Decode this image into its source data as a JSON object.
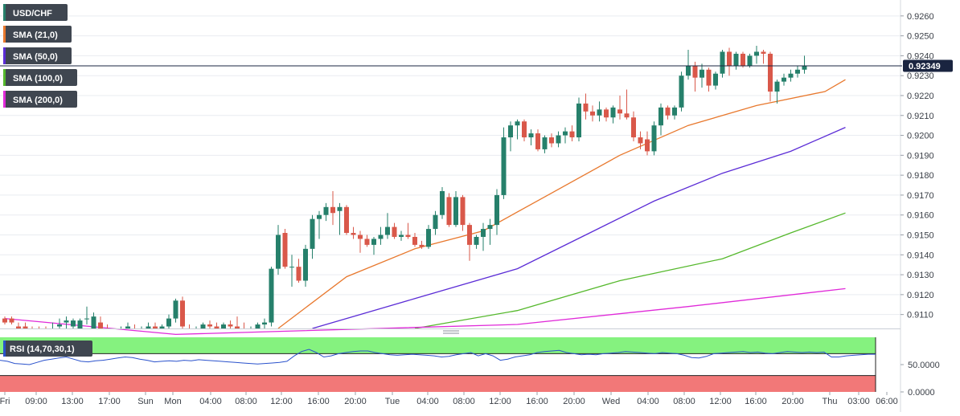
{
  "colors": {
    "bull": "#26806b",
    "bear": "#d9584a",
    "sma21": "#e8782d",
    "sma50": "#5b2cd6",
    "sma100": "#55b82c",
    "sma200": "#e02ad9",
    "rsi_line": "#2a52cc",
    "rsi_overbought": "#85f27f",
    "rsi_oversold": "#f27878",
    "price_tag": "#1a2440",
    "grid": "#e9ecf1"
  },
  "legend": [
    {
      "label": "USD/CHF",
      "color": "#26806b"
    },
    {
      "label": "SMA (21,0)",
      "color": "#e8782d"
    },
    {
      "label": "SMA (50,0)",
      "color": "#5b2cd6"
    },
    {
      "label": "SMA (100,0)",
      "color": "#55b82c"
    },
    {
      "label": "SMA (200,0)",
      "color": "#e02ad9"
    }
  ],
  "rsi_label": "RSI (14,70,30,1)",
  "last_price_label": "0.92349",
  "chart_data": [
    {
      "type": "candlestick",
      "ylim": [
        0.9103,
        0.9268
      ],
      "y_ticks": [
        "0.9260",
        "0.9250",
        "0.9240",
        "0.9230",
        "0.9220",
        "0.9210",
        "0.9200",
        "0.9190",
        "0.9180",
        "0.9170",
        "0.9160",
        "0.9150",
        "0.9140",
        "0.9130",
        "0.9120",
        "0.9110"
      ],
      "x_ticks": [
        "Fri",
        "09:00",
        "13:00",
        "17:00",
        "Sun",
        "Mon",
        "04:00",
        "08:00",
        "12:00",
        "16:00",
        "20:00",
        "Tue",
        "04:00",
        "08:00",
        "12:00",
        "16:00",
        "20:00",
        "Wed",
        "04:00",
        "08:00",
        "12:00",
        "16:00",
        "20:00",
        "Thu",
        "03:00",
        "06:00"
      ],
      "last_price": 0.92349,
      "candles": [
        {
          "o": 0.9108,
          "h": 0.9109,
          "l": 0.9105,
          "c": 0.9106
        },
        {
          "o": 0.9108,
          "h": 0.9109,
          "l": 0.9105,
          "c": 0.9106
        },
        {
          "o": 0.9104,
          "h": 0.9106,
          "l": 0.9101,
          "c": 0.9102
        },
        {
          "o": 0.9104,
          "h": 0.9106,
          "l": 0.9101,
          "c": 0.9102
        },
        {
          "o": 0.9103,
          "h": 0.9104,
          "l": 0.9101,
          "c": 0.9102
        },
        {
          "o": 0.9103,
          "h": 0.9104,
          "l": 0.9101,
          "c": 0.9102
        },
        {
          "o": 0.9103,
          "h": 0.9104,
          "l": 0.9101,
          "c": 0.9102
        },
        {
          "o": 0.9103,
          "h": 0.9106,
          "l": 0.91,
          "c": 0.9103
        },
        {
          "o": 0.9104,
          "h": 0.9108,
          "l": 0.9101,
          "c": 0.9105
        },
        {
          "o": 0.9106,
          "h": 0.9109,
          "l": 0.9103,
          "c": 0.9107
        },
        {
          "o": 0.9104,
          "h": 0.9108,
          "l": 0.9103,
          "c": 0.9107
        },
        {
          "o": 0.9103,
          "h": 0.9108,
          "l": 0.91,
          "c": 0.9107
        },
        {
          "o": 0.9108,
          "h": 0.9114,
          "l": 0.9105,
          "c": 0.9108
        },
        {
          "o": 0.9102,
          "h": 0.9111,
          "l": 0.9101,
          "c": 0.9109
        },
        {
          "o": 0.9106,
          "h": 0.9109,
          "l": 0.9102,
          "c": 0.9103
        },
        {
          "o": 0.9103,
          "h": 0.9105,
          "l": 0.91,
          "c": 0.9101
        },
        {
          "o": 0.9101,
          "h": 0.9103,
          "l": 0.9098,
          "c": 0.9102
        },
        {
          "o": 0.9102,
          "h": 0.9104,
          "l": 0.91,
          "c": 0.9103
        },
        {
          "o": 0.9101,
          "h": 0.9106,
          "l": 0.9101,
          "c": 0.9104
        },
        {
          "o": 0.9103,
          "h": 0.9105,
          "l": 0.91,
          "c": 0.9102
        },
        {
          "o": 0.9101,
          "h": 0.9104,
          "l": 0.91,
          "c": 0.9103
        },
        {
          "o": 0.9103,
          "h": 0.9106,
          "l": 0.9101,
          "c": 0.9104
        },
        {
          "o": 0.9104,
          "h": 0.9106,
          "l": 0.9102,
          "c": 0.9103
        },
        {
          "o": 0.9102,
          "h": 0.9105,
          "l": 0.91,
          "c": 0.9104
        },
        {
          "o": 0.9104,
          "h": 0.911,
          "l": 0.9102,
          "c": 0.9108
        },
        {
          "o": 0.9108,
          "h": 0.9118,
          "l": 0.9106,
          "c": 0.9117
        },
        {
          "o": 0.9117,
          "h": 0.9119,
          "l": 0.9103,
          "c": 0.9104
        },
        {
          "o": 0.9103,
          "h": 0.9105,
          "l": 0.91,
          "c": 0.9102
        },
        {
          "o": 0.9102,
          "h": 0.9104,
          "l": 0.91,
          "c": 0.9103
        },
        {
          "o": 0.9103,
          "h": 0.9106,
          "l": 0.9101,
          "c": 0.9105
        },
        {
          "o": 0.9105,
          "h": 0.9107,
          "l": 0.9102,
          "c": 0.9104
        },
        {
          "o": 0.9104,
          "h": 0.9106,
          "l": 0.9101,
          "c": 0.9103
        },
        {
          "o": 0.9103,
          "h": 0.9106,
          "l": 0.9101,
          "c": 0.9105
        },
        {
          "o": 0.9105,
          "h": 0.9107,
          "l": 0.9102,
          "c": 0.9104
        },
        {
          "o": 0.9104,
          "h": 0.9109,
          "l": 0.9101,
          "c": 0.9103
        },
        {
          "o": 0.9103,
          "h": 0.9106,
          "l": 0.9101,
          "c": 0.9102
        },
        {
          "o": 0.9102,
          "h": 0.9104,
          "l": 0.9099,
          "c": 0.9103
        },
        {
          "o": 0.9103,
          "h": 0.9106,
          "l": 0.9101,
          "c": 0.9105
        },
        {
          "o": 0.9105,
          "h": 0.9108,
          "l": 0.9103,
          "c": 0.9106
        },
        {
          "o": 0.9106,
          "h": 0.9134,
          "l": 0.9104,
          "c": 0.9133
        },
        {
          "o": 0.9133,
          "h": 0.9155,
          "l": 0.913,
          "c": 0.915
        },
        {
          "o": 0.9151,
          "h": 0.9153,
          "l": 0.9133,
          "c": 0.9134
        },
        {
          "o": 0.9134,
          "h": 0.914,
          "l": 0.9124,
          "c": 0.9134
        },
        {
          "o": 0.9134,
          "h": 0.9138,
          "l": 0.9126,
          "c": 0.9127
        },
        {
          "o": 0.9127,
          "h": 0.9145,
          "l": 0.9124,
          "c": 0.9143
        },
        {
          "o": 0.9143,
          "h": 0.916,
          "l": 0.9138,
          "c": 0.9158
        },
        {
          "o": 0.9158,
          "h": 0.9162,
          "l": 0.9148,
          "c": 0.916
        },
        {
          "o": 0.916,
          "h": 0.9166,
          "l": 0.9157,
          "c": 0.9164
        },
        {
          "o": 0.9164,
          "h": 0.9172,
          "l": 0.9155,
          "c": 0.9161
        },
        {
          "o": 0.9162,
          "h": 0.9166,
          "l": 0.915,
          "c": 0.9164
        },
        {
          "o": 0.9164,
          "h": 0.9165,
          "l": 0.915,
          "c": 0.9151
        },
        {
          "o": 0.9151,
          "h": 0.9154,
          "l": 0.9148,
          "c": 0.915
        },
        {
          "o": 0.915,
          "h": 0.9152,
          "l": 0.9141,
          "c": 0.9148
        },
        {
          "o": 0.9148,
          "h": 0.915,
          "l": 0.9144,
          "c": 0.9145
        },
        {
          "o": 0.9145,
          "h": 0.9149,
          "l": 0.914,
          "c": 0.9148
        },
        {
          "o": 0.9148,
          "h": 0.9154,
          "l": 0.9145,
          "c": 0.915
        },
        {
          "o": 0.915,
          "h": 0.9161,
          "l": 0.9148,
          "c": 0.9154
        },
        {
          "o": 0.9154,
          "h": 0.9156,
          "l": 0.9148,
          "c": 0.9149
        },
        {
          "o": 0.9149,
          "h": 0.9152,
          "l": 0.9147,
          "c": 0.915
        },
        {
          "o": 0.915,
          "h": 0.9156,
          "l": 0.9148,
          "c": 0.9149
        },
        {
          "o": 0.9149,
          "h": 0.9151,
          "l": 0.9144,
          "c": 0.9145
        },
        {
          "o": 0.9145,
          "h": 0.9147,
          "l": 0.9143,
          "c": 0.9144
        },
        {
          "o": 0.9144,
          "h": 0.9155,
          "l": 0.9143,
          "c": 0.9153
        },
        {
          "o": 0.9153,
          "h": 0.9162,
          "l": 0.915,
          "c": 0.916
        },
        {
          "o": 0.916,
          "h": 0.9174,
          "l": 0.9158,
          "c": 0.9172
        },
        {
          "o": 0.9169,
          "h": 0.9171,
          "l": 0.9154,
          "c": 0.9155
        },
        {
          "o": 0.9155,
          "h": 0.9172,
          "l": 0.9154,
          "c": 0.9169
        },
        {
          "o": 0.9169,
          "h": 0.917,
          "l": 0.9152,
          "c": 0.9155
        },
        {
          "o": 0.9155,
          "h": 0.9156,
          "l": 0.9137,
          "c": 0.9145
        },
        {
          "o": 0.9145,
          "h": 0.915,
          "l": 0.9143,
          "c": 0.9149
        },
        {
          "o": 0.9149,
          "h": 0.9156,
          "l": 0.9142,
          "c": 0.9153
        },
        {
          "o": 0.9153,
          "h": 0.9158,
          "l": 0.9145,
          "c": 0.9155
        },
        {
          "o": 0.9155,
          "h": 0.9173,
          "l": 0.915,
          "c": 0.917
        },
        {
          "o": 0.917,
          "h": 0.9204,
          "l": 0.9168,
          "c": 0.9199
        },
        {
          "o": 0.9199,
          "h": 0.9207,
          "l": 0.9192,
          "c": 0.9205
        },
        {
          "o": 0.9205,
          "h": 0.9208,
          "l": 0.9198,
          "c": 0.9207
        },
        {
          "o": 0.9207,
          "h": 0.9208,
          "l": 0.9197,
          "c": 0.9199
        },
        {
          "o": 0.9199,
          "h": 0.9203,
          "l": 0.9195,
          "c": 0.9201
        },
        {
          "o": 0.9201,
          "h": 0.9203,
          "l": 0.9192,
          "c": 0.9193
        },
        {
          "o": 0.9193,
          "h": 0.92,
          "l": 0.9191,
          "c": 0.9199
        },
        {
          "o": 0.9199,
          "h": 0.9201,
          "l": 0.9194,
          "c": 0.9196
        },
        {
          "o": 0.9196,
          "h": 0.9202,
          "l": 0.9194,
          "c": 0.92
        },
        {
          "o": 0.92,
          "h": 0.9204,
          "l": 0.9196,
          "c": 0.9202
        },
        {
          "o": 0.9202,
          "h": 0.9205,
          "l": 0.9197,
          "c": 0.9199
        },
        {
          "o": 0.9199,
          "h": 0.9219,
          "l": 0.9197,
          "c": 0.9216
        },
        {
          "o": 0.9216,
          "h": 0.9221,
          "l": 0.9208,
          "c": 0.9212
        },
        {
          "o": 0.9212,
          "h": 0.9215,
          "l": 0.9207,
          "c": 0.921
        },
        {
          "o": 0.921,
          "h": 0.9217,
          "l": 0.9207,
          "c": 0.9213
        },
        {
          "o": 0.9213,
          "h": 0.9214,
          "l": 0.9207,
          "c": 0.9209
        },
        {
          "o": 0.9209,
          "h": 0.9215,
          "l": 0.9206,
          "c": 0.9214
        },
        {
          "o": 0.9213,
          "h": 0.922,
          "l": 0.9208,
          "c": 0.9211
        },
        {
          "o": 0.9211,
          "h": 0.9223,
          "l": 0.9208,
          "c": 0.9209
        },
        {
          "o": 0.9209,
          "h": 0.9212,
          "l": 0.9197,
          "c": 0.9199
        },
        {
          "o": 0.9199,
          "h": 0.9202,
          "l": 0.9193,
          "c": 0.9196
        },
        {
          "o": 0.9198,
          "h": 0.9202,
          "l": 0.919,
          "c": 0.9192
        },
        {
          "o": 0.9192,
          "h": 0.9207,
          "l": 0.919,
          "c": 0.9205
        },
        {
          "o": 0.9205,
          "h": 0.9216,
          "l": 0.92,
          "c": 0.9214
        },
        {
          "o": 0.9214,
          "h": 0.9215,
          "l": 0.9208,
          "c": 0.921
        },
        {
          "o": 0.921,
          "h": 0.9215,
          "l": 0.9208,
          "c": 0.9214
        },
        {
          "o": 0.9214,
          "h": 0.9232,
          "l": 0.9212,
          "c": 0.923
        },
        {
          "o": 0.923,
          "h": 0.9243,
          "l": 0.9228,
          "c": 0.9235
        },
        {
          "o": 0.9235,
          "h": 0.9237,
          "l": 0.9222,
          "c": 0.9229
        },
        {
          "o": 0.9229,
          "h": 0.9236,
          "l": 0.9224,
          "c": 0.9233
        },
        {
          "o": 0.9233,
          "h": 0.9234,
          "l": 0.9222,
          "c": 0.9225
        },
        {
          "o": 0.9225,
          "h": 0.9232,
          "l": 0.9223,
          "c": 0.9231
        },
        {
          "o": 0.9231,
          "h": 0.9243,
          "l": 0.9229,
          "c": 0.9242
        },
        {
          "o": 0.9242,
          "h": 0.9244,
          "l": 0.923,
          "c": 0.9235
        },
        {
          "o": 0.9235,
          "h": 0.9242,
          "l": 0.9233,
          "c": 0.9241
        },
        {
          "o": 0.9241,
          "h": 0.9242,
          "l": 0.9234,
          "c": 0.9235
        },
        {
          "o": 0.9235,
          "h": 0.9241,
          "l": 0.9234,
          "c": 0.924
        },
        {
          "o": 0.924,
          "h": 0.9245,
          "l": 0.9236,
          "c": 0.9242
        },
        {
          "o": 0.9242,
          "h": 0.9243,
          "l": 0.9236,
          "c": 0.9241
        },
        {
          "o": 0.9241,
          "h": 0.9242,
          "l": 0.9217,
          "c": 0.9222
        },
        {
          "o": 0.9222,
          "h": 0.9228,
          "l": 0.9216,
          "c": 0.9227
        },
        {
          "o": 0.9227,
          "h": 0.9231,
          "l": 0.9225,
          "c": 0.9229
        },
        {
          "o": 0.9229,
          "h": 0.9233,
          "l": 0.9227,
          "c": 0.9231
        },
        {
          "o": 0.9231,
          "h": 0.9235,
          "l": 0.9229,
          "c": 0.9233
        },
        {
          "o": 0.9233,
          "h": 0.924,
          "l": 0.9231,
          "c": 0.9235
        }
      ],
      "series": [
        {
          "name": "SMA (21,0)",
          "x_index": [
            40,
            50,
            60,
            70,
            80,
            90,
            100,
            110,
            120,
            123
          ],
          "values": [
            0.9103,
            0.9129,
            0.9143,
            0.9152,
            0.9171,
            0.919,
            0.9205,
            0.9215,
            0.9222,
            0.9228
          ]
        },
        {
          "name": "SMA (50,0)",
          "x_index": [
            45,
            60,
            75,
            85,
            95,
            105,
            115,
            123
          ],
          "values": [
            0.9103,
            0.9118,
            0.9133,
            0.915,
            0.9167,
            0.9181,
            0.9192,
            0.9204
          ]
        },
        {
          "name": "SMA (100,0)",
          "x_index": [
            60,
            75,
            90,
            105,
            115,
            123
          ],
          "values": [
            0.9103,
            0.9112,
            0.9127,
            0.9138,
            0.9151,
            0.9161
          ]
        },
        {
          "name": "SMA (200,0)",
          "x_index": [
            0,
            25,
            75,
            100,
            123
          ],
          "values": [
            0.9108,
            0.91,
            0.9105,
            0.9114,
            0.9123
          ]
        }
      ]
    },
    {
      "type": "line",
      "ylim": [
        0,
        100
      ],
      "y_ticks": [
        "50.0000",
        "0.0000"
      ],
      "series": [
        {
          "name": "RSI (14,70,30,1)",
          "values": [
            58,
            56,
            52,
            51,
            50,
            54,
            58,
            60,
            62,
            64,
            60,
            56,
            55,
            57,
            58,
            60,
            62,
            64,
            63,
            60,
            58,
            55,
            56,
            57,
            56,
            58,
            57,
            59,
            58,
            57,
            56,
            55,
            54,
            53,
            52,
            51,
            52,
            53,
            54,
            56,
            66,
            74,
            78,
            72,
            64,
            66,
            70,
            72,
            74,
            75,
            75,
            72,
            70,
            68,
            67,
            68,
            69,
            68,
            67,
            66,
            64,
            65,
            68,
            70,
            72,
            66,
            70,
            66,
            58,
            60,
            64,
            66,
            68,
            72,
            74,
            75,
            76,
            72,
            70,
            68,
            69,
            68,
            70,
            71,
            72,
            74,
            73,
            72,
            71,
            70,
            72,
            71,
            70,
            67,
            63,
            62,
            65,
            70,
            71,
            72,
            73,
            74,
            72,
            73,
            71,
            70,
            72,
            74,
            73,
            72,
            73,
            72,
            73,
            64,
            64,
            66,
            67,
            68,
            69,
            69
          ]
        }
      ]
    }
  ]
}
